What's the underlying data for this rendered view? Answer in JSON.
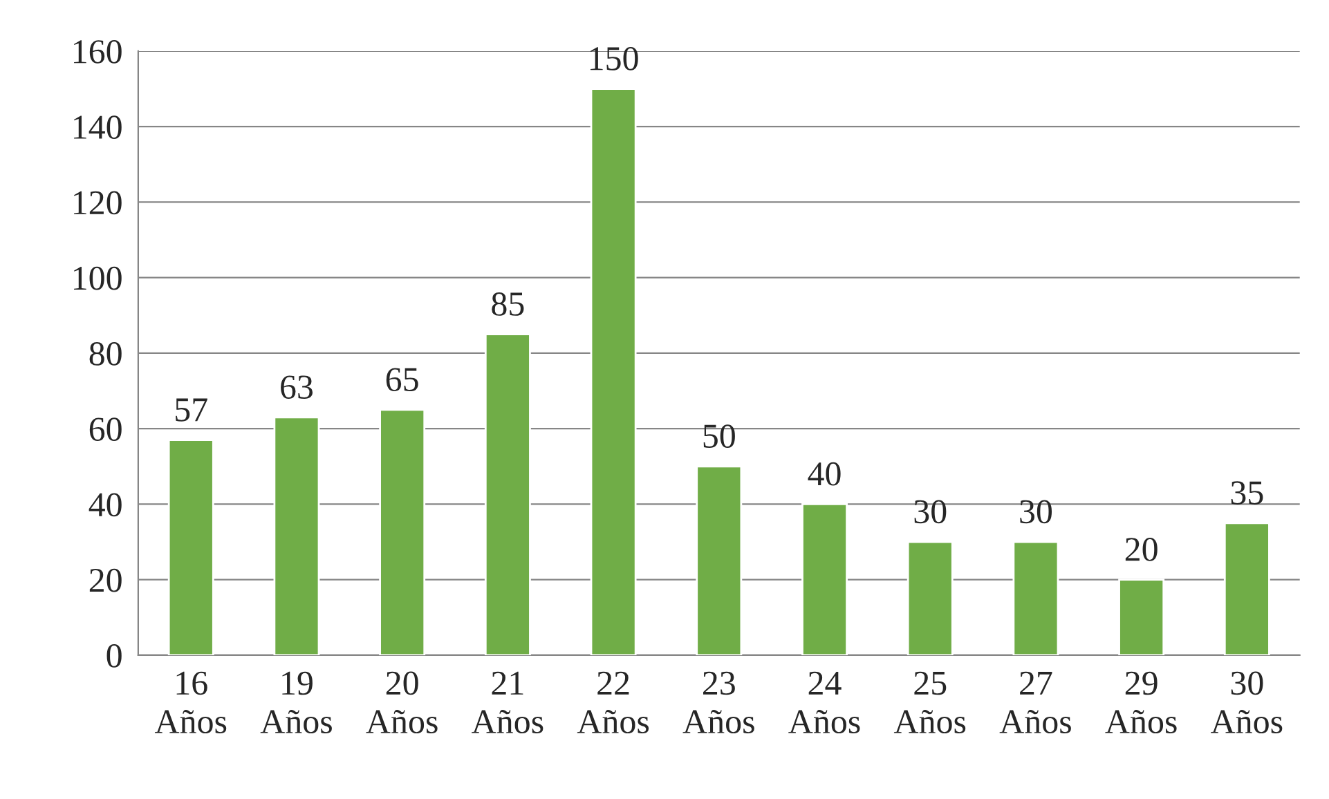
{
  "chart_data": {
    "type": "bar",
    "categories": [
      "16\nAños",
      "19\nAños",
      "20\nAños",
      "21\nAños",
      "22\nAños",
      "23\nAños",
      "24\nAños",
      "25\nAños",
      "27\nAños",
      "29\nAños",
      "30\nAños"
    ],
    "values": [
      57,
      63,
      65,
      85,
      150,
      50,
      40,
      30,
      30,
      20,
      35
    ],
    "color": "#70ad47",
    "ylim": [
      0,
      160
    ],
    "yticks": [
      0,
      20,
      40,
      60,
      80,
      100,
      120,
      140,
      160
    ],
    "grid": "y",
    "data_labels": true,
    "legend": false
  }
}
